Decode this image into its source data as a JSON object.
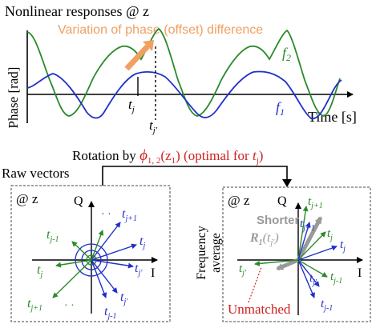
{
  "top_panel": {
    "title": "Nonlinear responses @ z",
    "variation_label": "Variation of phase (offset) difference",
    "y_label": "Phase [rad]",
    "x_label": "Time [s]",
    "f2_label": "f",
    "f2_sub": "2",
    "f1_label": "f",
    "f1_sub": "1",
    "tj_label": "t",
    "tj_sub": "j",
    "tjp_label": "t",
    "tjp_sub": "j'"
  },
  "rotation": {
    "prefix": "Rotation by ",
    "phi": "ϕ",
    "phi_sub": "1, 2",
    "phi_arg": "(z",
    "phi_arg_sub": "1",
    "phi_arg_end": ")",
    "suffix": " (optimal for ",
    "t": "t",
    "t_sub": "j",
    "close": ")"
  },
  "left_panel": {
    "header": "Raw vectors",
    "at_z": "@ z",
    "axis_q": "Q",
    "axis_i": "I",
    "dots_top": "· ·",
    "dots_bottom": "· ·",
    "labels": {
      "tj1_top": "t",
      "tj1_top_sub": "j+1",
      "tjm1": "t",
      "tjm1_sub": "j-1",
      "tj_right": "t",
      "tj_right_sub": "j",
      "tj_left": "t",
      "tj_left_sub": "j",
      "tjp_right": "t",
      "tjp_right_sub": "j'",
      "tjp_bottom": "t",
      "tjp_bottom_sub": "j'",
      "tj1_bottom": "t",
      "tj1_bottom_sub": "j+1",
      "tjm1_bottom": "t",
      "tjm1_bottom_sub": "j-1"
    }
  },
  "right_panel": {
    "at_z": "@ z",
    "axis_q": "Q",
    "axis_i": "I",
    "freq_label": "Frequency",
    "avg_label": "average",
    "shorter": "Shorter",
    "r_label": "R",
    "r_sub": "1",
    "r_arg": "(t",
    "r_arg_sub": "j'",
    "r_arg_end": ")",
    "unmatched": "Unmatched",
    "labels": {
      "tj1_top": "t",
      "tj1_top_sub": "j+1",
      "tj1_mid": "t",
      "tj1_mid_sub": "j+1",
      "tj_a": "t",
      "tj_a_sub": "j",
      "tj_b": "t",
      "tj_b_sub": "j",
      "tjp_left": "t",
      "tjp_left_sub": "j'",
      "tjp_bottom": "t",
      "tjp_bottom_sub": "j'",
      "tjm1_a": "t",
      "tjm1_a_sub": "j-1",
      "tjm1_b": "t",
      "tjm1_b_sub": "j-1"
    }
  },
  "colors": {
    "green": "#2a8a2a",
    "blue": "#2030c8",
    "orange": "#f0a060",
    "red": "#d02020",
    "gray": "#999999",
    "black": "#000000"
  }
}
